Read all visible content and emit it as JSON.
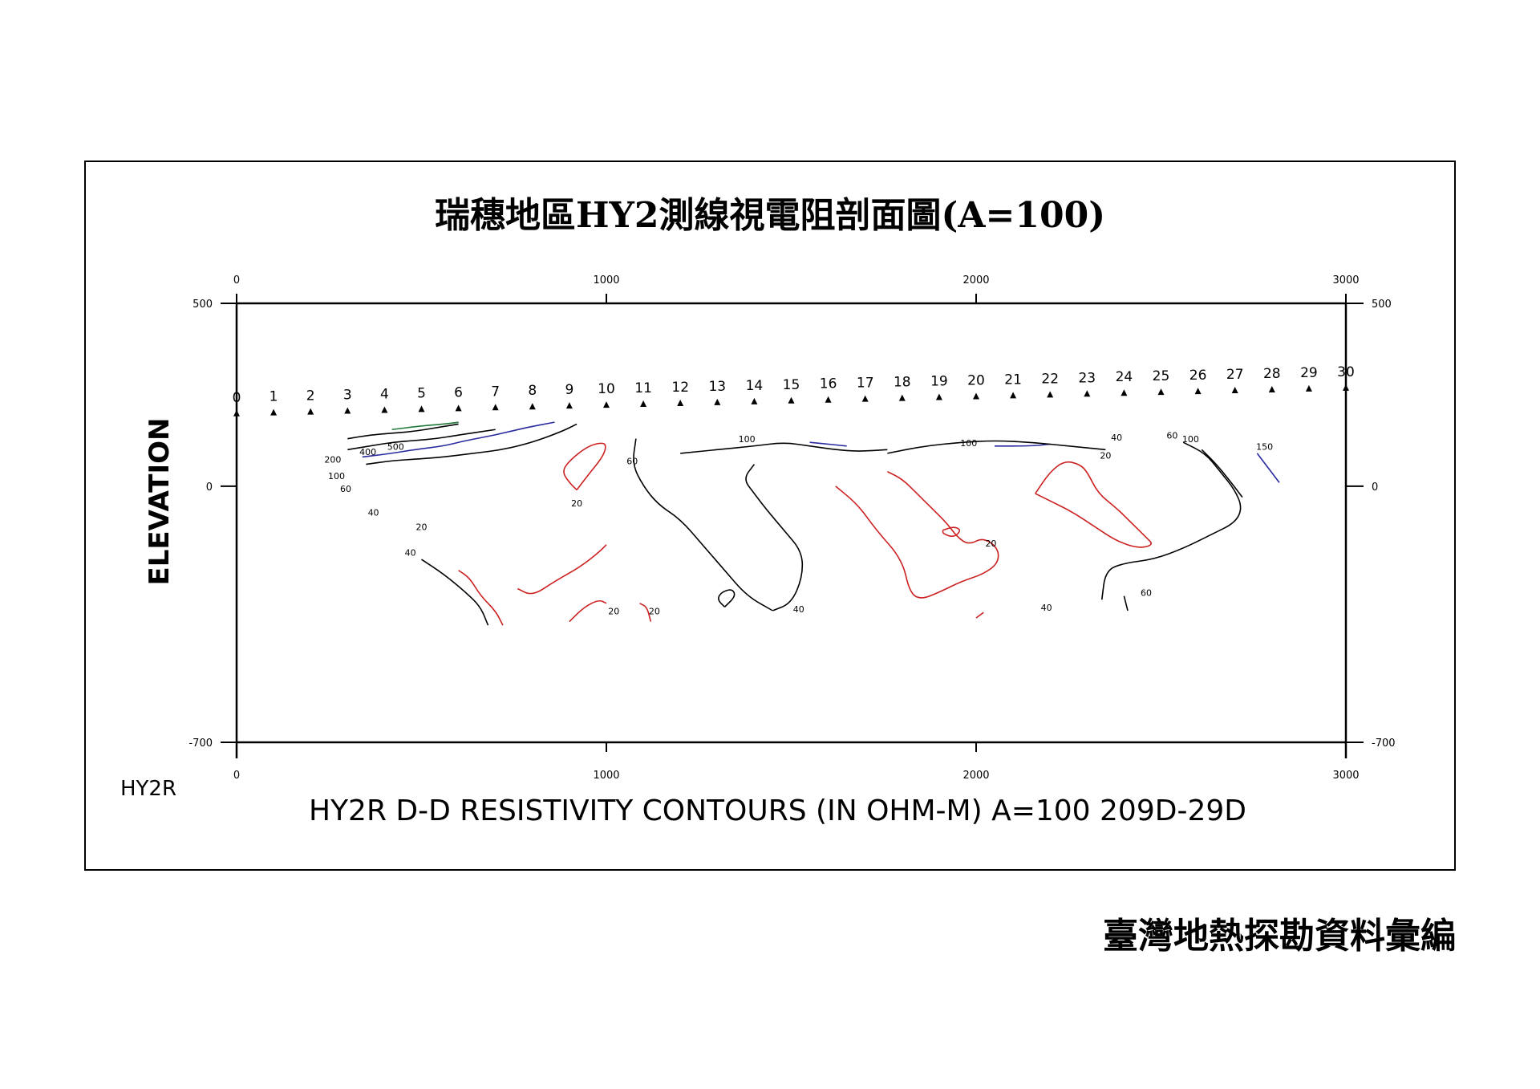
{
  "title": "瑞穗地區HY2測線視電阻剖面圖(A=100)",
  "caption": "HY2R  D-D RESISTIVITY  CONTOURS  (IN OHM-M) A=100  209D-29D",
  "line_id": "HY2R",
  "publisher": "臺灣地熱探勘資料彙編",
  "chart_data": {
    "type": "contour",
    "ylabel": "ELEVATION",
    "xlim": [
      0,
      3000
    ],
    "ylim": [
      -700,
      500
    ],
    "x_ticks": [
      "0",
      "1000",
      "2000",
      "3000"
    ],
    "y_ticks": [
      "500",
      "0",
      "-700"
    ],
    "electrodes": [
      "0",
      "1",
      "2",
      "3",
      "4",
      "5",
      "6",
      "7",
      "8",
      "9",
      "10",
      "11",
      "12",
      "13",
      "14",
      "15",
      "16",
      "17",
      "18",
      "19",
      "20",
      "21",
      "22",
      "23",
      "24",
      "25",
      "26",
      "27",
      "28",
      "29",
      "30"
    ],
    "electrode_spacing": 100,
    "electrode_elev_start": 200,
    "electrode_elev_end": 270,
    "colors": {
      "low": "#cc2020",
      "mid": "#000000",
      "high": "#2a2aa0",
      "very_high": "#1f7a3a"
    },
    "contours": [
      {
        "value": 500,
        "color": "#1f7a3a",
        "points": [
          [
            420,
            155
          ],
          [
            500,
            165
          ],
          [
            560,
            170
          ],
          [
            600,
            175
          ]
        ]
      },
      {
        "value": 400,
        "color": "#000000",
        "points": [
          [
            300,
            130
          ],
          [
            360,
            140
          ],
          [
            420,
            145
          ],
          [
            480,
            150
          ],
          [
            540,
            160
          ],
          [
            600,
            170
          ]
        ]
      },
      {
        "value": 200,
        "color": "#000000",
        "points": [
          [
            300,
            100
          ],
          [
            360,
            110
          ],
          [
            420,
            120
          ],
          [
            480,
            125
          ],
          [
            540,
            130
          ],
          [
            600,
            140
          ],
          [
            700,
            155
          ]
        ]
      },
      {
        "value": 100,
        "color": "#2a2aa0",
        "points": [
          [
            340,
            80
          ],
          [
            420,
            90
          ],
          [
            480,
            100
          ],
          [
            560,
            110
          ],
          [
            620,
            125
          ],
          [
            700,
            140
          ],
          [
            780,
            160
          ],
          [
            860,
            175
          ]
        ]
      },
      {
        "value": 60,
        "color": "#000000",
        "points": [
          [
            350,
            60
          ],
          [
            420,
            70
          ],
          [
            500,
            75
          ],
          [
            560,
            80
          ],
          [
            640,
            90
          ],
          [
            720,
            100
          ],
          [
            800,
            120
          ],
          [
            880,
            150
          ],
          [
            920,
            170
          ]
        ]
      },
      {
        "value": 40,
        "color": "#000000",
        "points": [
          [
            500,
            -200
          ],
          [
            560,
            -240
          ],
          [
            620,
            -290
          ],
          [
            660,
            -330
          ],
          [
            680,
            -380
          ]
        ]
      },
      {
        "value": 20,
        "color": "#cc2020",
        "points": [
          [
            920,
            -10
          ],
          [
            950,
            30
          ],
          [
            990,
            80
          ],
          [
            1000,
            110
          ],
          [
            990,
            120
          ],
          [
            950,
            110
          ],
          [
            900,
            70
          ],
          [
            880,
            40
          ],
          [
            900,
            10
          ],
          [
            920,
            -10
          ]
        ]
      },
      {
        "value": 20,
        "color": "#cc2020",
        "points": [
          [
            600,
            -230
          ],
          [
            630,
            -250
          ],
          [
            660,
            -300
          ],
          [
            700,
            -340
          ],
          [
            720,
            -380
          ]
        ]
      },
      {
        "value": 20,
        "color": "#cc2020",
        "points": [
          [
            760,
            -280
          ],
          [
            800,
            -300
          ],
          [
            860,
            -260
          ],
          [
            930,
            -220
          ],
          [
            980,
            -180
          ],
          [
            1000,
            -160
          ]
        ]
      },
      {
        "value": 20,
        "color": "#cc2020",
        "points": [
          [
            900,
            -370
          ],
          [
            940,
            -330
          ],
          [
            980,
            -310
          ],
          [
            1000,
            -320
          ]
        ]
      },
      {
        "value": 20,
        "color": "#cc2020",
        "points": [
          [
            1090,
            -320
          ],
          [
            1110,
            -330
          ],
          [
            1120,
            -370
          ]
        ]
      },
      {
        "value": 60,
        "color": "#000000",
        "points": [
          [
            1080,
            130
          ],
          [
            1070,
            60
          ],
          [
            1100,
            0
          ],
          [
            1140,
            -50
          ],
          [
            1200,
            -90
          ],
          [
            1260,
            -160
          ],
          [
            1320,
            -230
          ],
          [
            1380,
            -300
          ],
          [
            1450,
            -340
          ]
        ]
      },
      {
        "value": 40,
        "color": "#000000",
        "points": [
          [
            1450,
            -340
          ],
          [
            1500,
            -320
          ],
          [
            1530,
            -250
          ],
          [
            1530,
            -180
          ],
          [
            1480,
            -120
          ],
          [
            1430,
            -60
          ],
          [
            1400,
            -20
          ],
          [
            1370,
            20
          ],
          [
            1400,
            60
          ]
        ]
      },
      {
        "value": 100,
        "color": "#000000",
        "points": [
          [
            1200,
            90
          ],
          [
            1300,
            100
          ],
          [
            1400,
            110
          ],
          [
            1480,
            120
          ],
          [
            1550,
            110
          ],
          [
            1620,
            100
          ],
          [
            1680,
            95
          ],
          [
            1760,
            100
          ]
        ]
      },
      {
        "value": 100,
        "color": "#2a2aa0",
        "points": [
          [
            1550,
            120
          ],
          [
            1600,
            115
          ],
          [
            1650,
            110
          ]
        ]
      },
      {
        "value": 20,
        "color": "#cc2020",
        "points": [
          [
            1620,
            0
          ],
          [
            1680,
            -50
          ],
          [
            1730,
            -120
          ],
          [
            1800,
            -200
          ],
          [
            1820,
            -290
          ],
          [
            1850,
            -310
          ],
          [
            1900,
            -290
          ],
          [
            1960,
            -260
          ],
          [
            2020,
            -240
          ],
          [
            2060,
            -210
          ],
          [
            2060,
            -170
          ],
          [
            2020,
            -140
          ],
          [
            1980,
            -160
          ],
          [
            1950,
            -140
          ],
          [
            1920,
            -100
          ],
          [
            1880,
            -60
          ],
          [
            1840,
            -20
          ],
          [
            1800,
            20
          ],
          [
            1760,
            40
          ]
        ]
      },
      {
        "value": 20,
        "color": "#cc2020",
        "points": [
          [
            1910,
            -120
          ],
          [
            1940,
            -110
          ],
          [
            1960,
            -120
          ],
          [
            1940,
            -140
          ],
          [
            1910,
            -130
          ],
          [
            1910,
            -120
          ]
        ]
      },
      {
        "value": 100,
        "color": "#2a2aa0",
        "points": [
          [
            2050,
            110
          ],
          [
            2150,
            110
          ],
          [
            2200,
            115
          ]
        ]
      },
      {
        "value": 40,
        "color": "#000000",
        "points": [
          [
            1760,
            90
          ],
          [
            1860,
            110
          ],
          [
            1960,
            120
          ],
          [
            2050,
            125
          ],
          [
            2150,
            120
          ],
          [
            2250,
            110
          ],
          [
            2350,
            100
          ]
        ]
      },
      {
        "value": 20,
        "color": "#cc2020",
        "points": [
          [
            2160,
            -20
          ],
          [
            2200,
            40
          ],
          [
            2240,
            70
          ],
          [
            2280,
            60
          ],
          [
            2300,
            40
          ],
          [
            2330,
            -20
          ],
          [
            2380,
            -60
          ],
          [
            2420,
            -100
          ],
          [
            2460,
            -140
          ],
          [
            2480,
            -160
          ],
          [
            2440,
            -170
          ],
          [
            2380,
            -150
          ],
          [
            2320,
            -110
          ],
          [
            2260,
            -70
          ],
          [
            2200,
            -40
          ],
          [
            2160,
            -20
          ]
        ]
      },
      {
        "value": 60,
        "color": "#000000",
        "points": [
          [
            2560,
            120
          ],
          [
            2620,
            90
          ],
          [
            2660,
            40
          ],
          [
            2700,
            -10
          ],
          [
            2720,
            -60
          ],
          [
            2700,
            -100
          ],
          [
            2640,
            -130
          ],
          [
            2560,
            -170
          ],
          [
            2480,
            -200
          ],
          [
            2400,
            -210
          ],
          [
            2350,
            -230
          ],
          [
            2340,
            -310
          ]
        ]
      },
      {
        "value": 100,
        "color": "#000000",
        "points": [
          [
            2610,
            100
          ],
          [
            2650,
            60
          ],
          [
            2690,
            10
          ],
          [
            2720,
            -30
          ]
        ]
      },
      {
        "value": 150,
        "color": "#2a2aa0",
        "points": [
          [
            2760,
            90
          ],
          [
            2790,
            50
          ],
          [
            2820,
            10
          ]
        ]
      },
      {
        "value": 40,
        "color": "#000000",
        "points": [
          [
            2400,
            -300
          ],
          [
            2410,
            -340
          ]
        ]
      },
      {
        "value": 20,
        "color": "#cc2020",
        "points": [
          [
            2000,
            -360
          ],
          [
            2020,
            -345
          ]
        ]
      },
      {
        "value": 40,
        "color": "#000000",
        "points": [
          [
            1320,
            -330
          ],
          [
            1350,
            -300
          ],
          [
            1340,
            -280
          ],
          [
            1310,
            -290
          ],
          [
            1300,
            -310
          ],
          [
            1320,
            -330
          ]
        ]
      }
    ],
    "contour_labels": [
      {
        "text": "500",
        "x": 430,
        "y": 100
      },
      {
        "text": "400",
        "x": 355,
        "y": 85
      },
      {
        "text": "200",
        "x": 260,
        "y": 65
      },
      {
        "text": "100",
        "x": 270,
        "y": 20
      },
      {
        "text": "60",
        "x": 295,
        "y": -15
      },
      {
        "text": "40",
        "x": 370,
        "y": -80
      },
      {
        "text": "20",
        "x": 500,
        "y": -120
      },
      {
        "text": "40",
        "x": 470,
        "y": -190
      },
      {
        "text": "20",
        "x": 920,
        "y": -55
      },
      {
        "text": "60",
        "x": 1070,
        "y": 60
      },
      {
        "text": "100",
        "x": 1380,
        "y": 120
      },
      {
        "text": "40",
        "x": 1520,
        "y": -345
      },
      {
        "text": "20",
        "x": 1020,
        "y": -350
      },
      {
        "text": "20",
        "x": 1130,
        "y": -350
      },
      {
        "text": "100",
        "x": 1980,
        "y": 110
      },
      {
        "text": "20",
        "x": 2040,
        "y": -165
      },
      {
        "text": "20",
        "x": 2350,
        "y": 75
      },
      {
        "text": "40",
        "x": 2380,
        "y": 125
      },
      {
        "text": "60",
        "x": 2530,
        "y": 130
      },
      {
        "text": "100",
        "x": 2580,
        "y": 120
      },
      {
        "text": "150",
        "x": 2780,
        "y": 100
      },
      {
        "text": "60",
        "x": 2460,
        "y": -300
      },
      {
        "text": "40",
        "x": 2190,
        "y": -340
      }
    ]
  }
}
